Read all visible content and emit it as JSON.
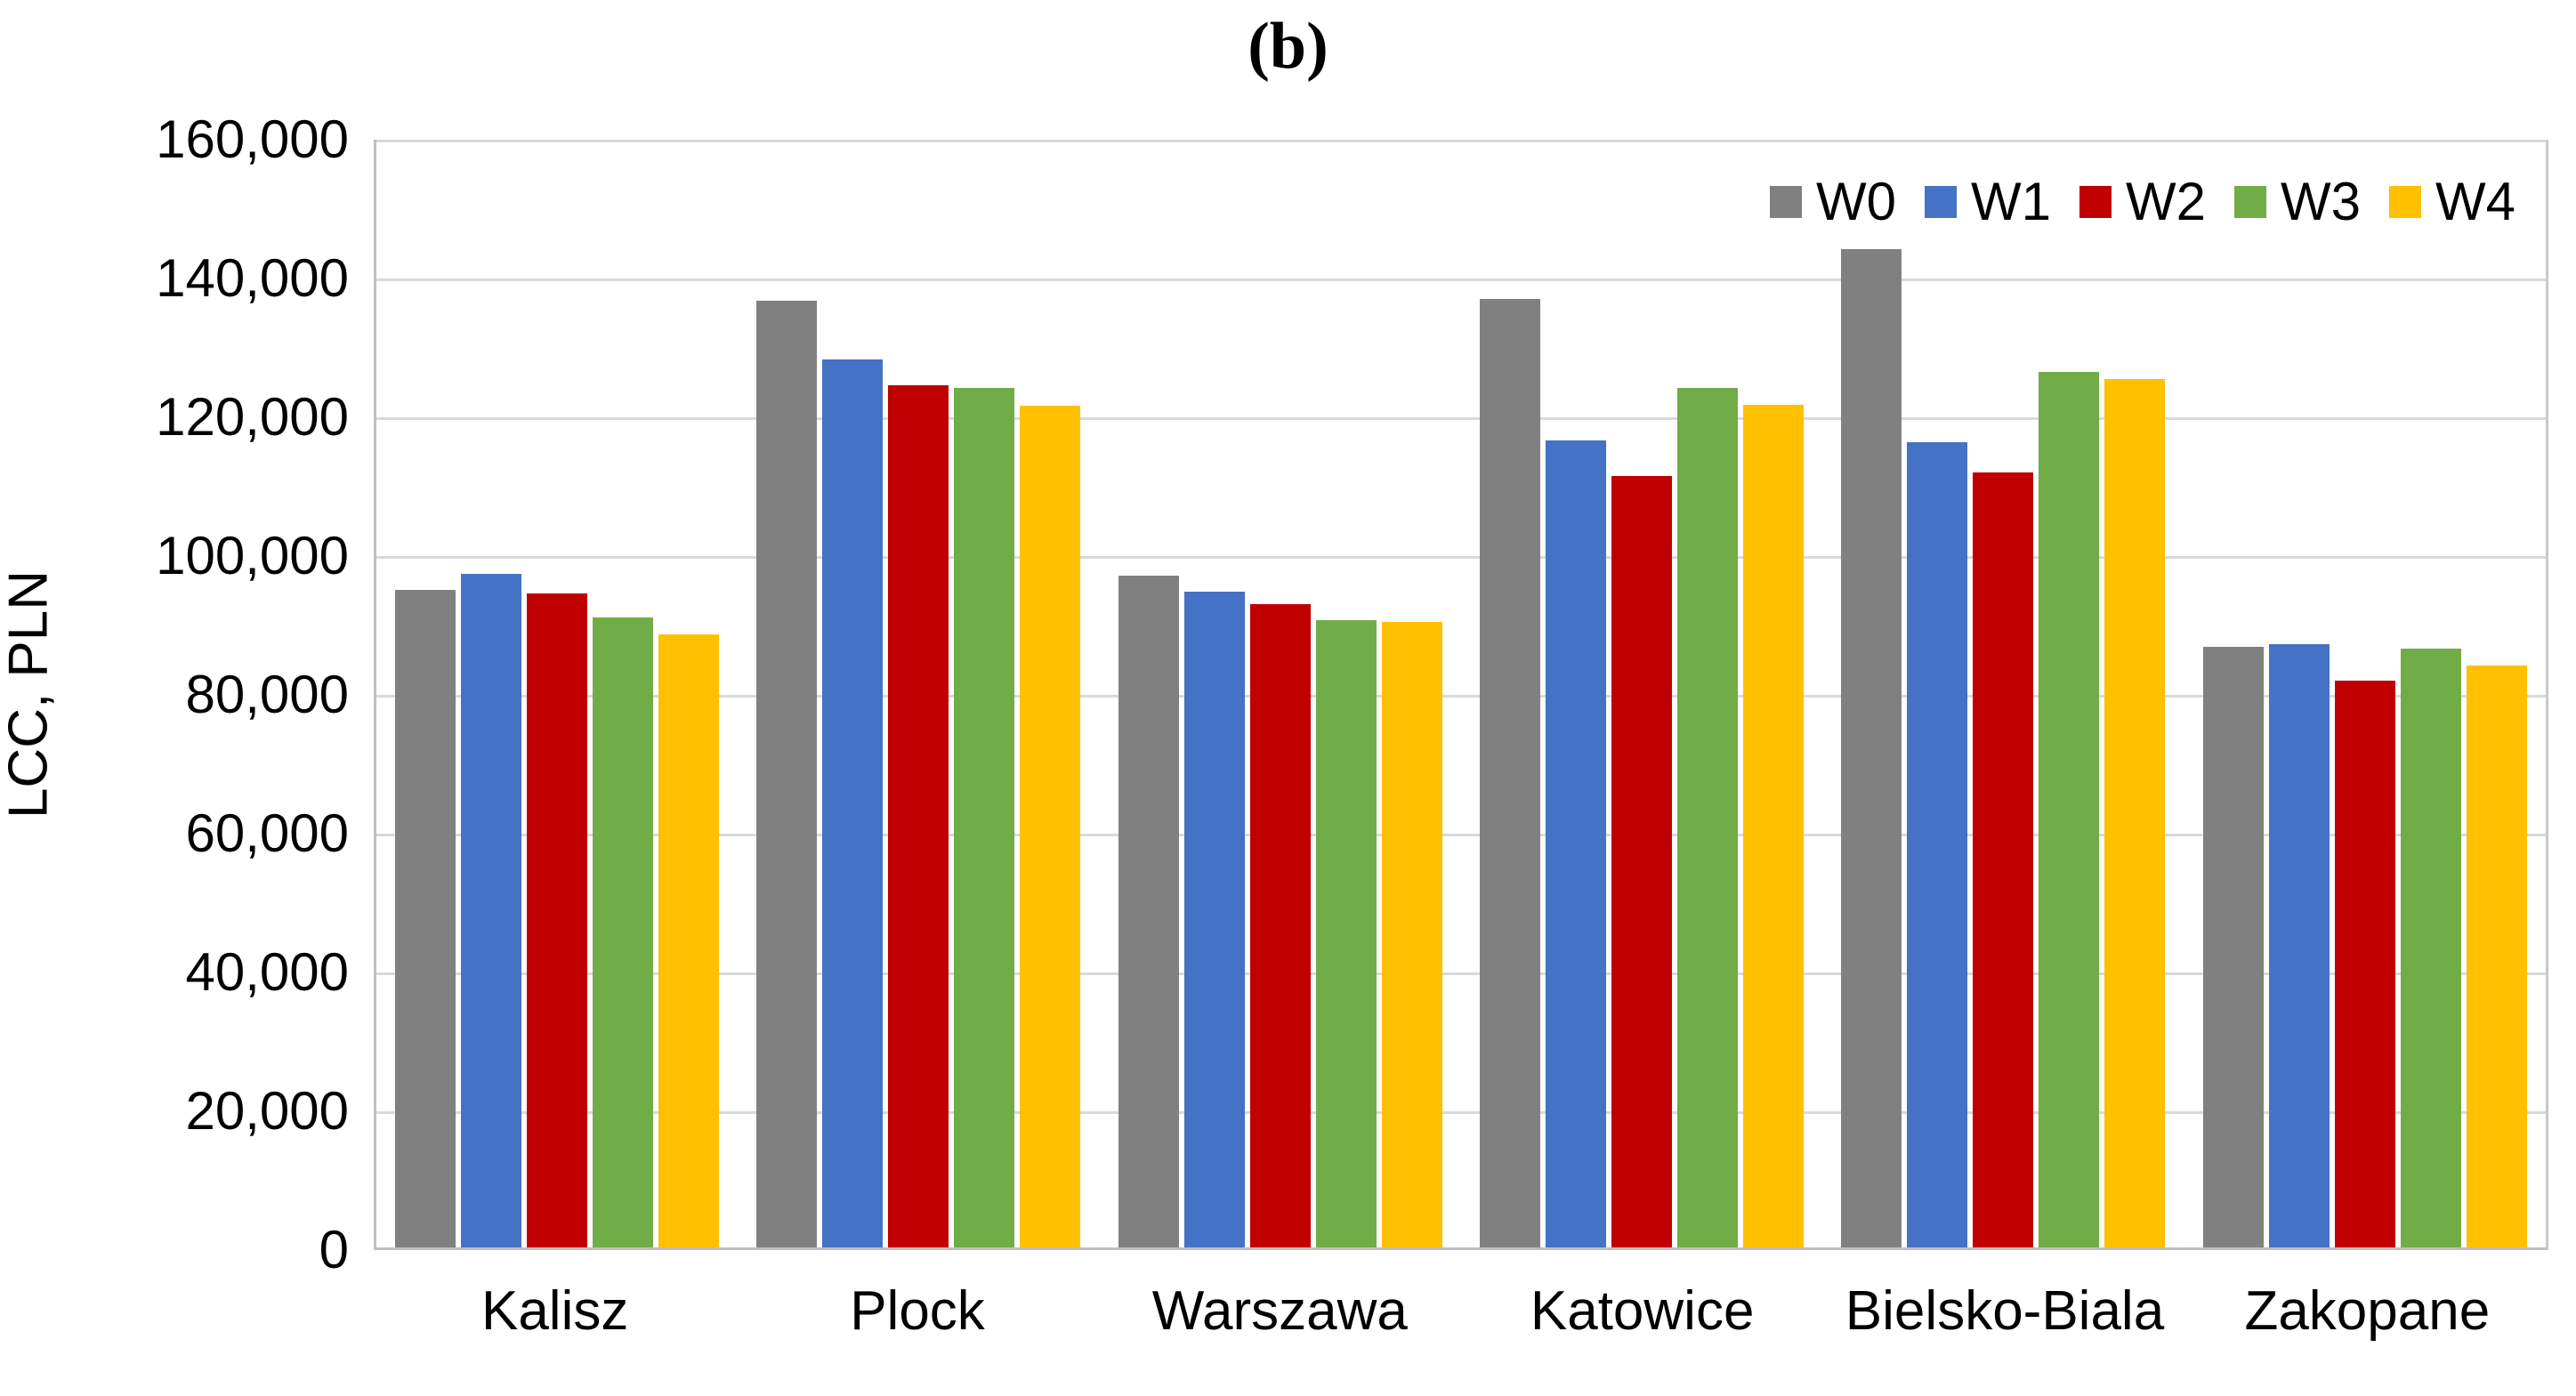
{
  "figure": {
    "panel_label": "(b)"
  },
  "chart_data": {
    "type": "bar",
    "title": "(b)",
    "xlabel": "",
    "ylabel": "LCC, PLN",
    "ylim": [
      0,
      160000
    ],
    "ytick_interval": 20000,
    "ytick_labels_desc": [
      "160,000",
      "140,000",
      "120,000",
      "100,000",
      "80,000",
      "60,000",
      "40,000",
      "20,000",
      "0"
    ],
    "grid": "horizontal",
    "legend_position": "top-right-inside",
    "categories": [
      "Kalisz",
      "Plock",
      "Warszawa",
      "Katowice",
      "Bielsko-Biala",
      "Zakopane"
    ],
    "series": [
      {
        "name": "W0",
        "color": "#808080",
        "values": [
          95000,
          136800,
          97000,
          137000,
          144200,
          86700
        ]
      },
      {
        "name": "W1",
        "color": "#4472C4",
        "values": [
          97300,
          128300,
          94700,
          116500,
          116300,
          87100
        ]
      },
      {
        "name": "W2",
        "color": "#C00000",
        "values": [
          94400,
          124500,
          92900,
          111400,
          111900,
          81900
        ]
      },
      {
        "name": "W3",
        "color": "#70AD47",
        "values": [
          91000,
          124200,
          90600,
          124100,
          126500,
          86500
        ]
      },
      {
        "name": "W4",
        "color": "#FFC000",
        "values": [
          88500,
          121600,
          90300,
          121700,
          125400,
          84000
        ]
      }
    ],
    "colors": {
      "gridline": "#D9D9D9",
      "axis_line": "#BFBFBF",
      "text": "#000000"
    }
  }
}
